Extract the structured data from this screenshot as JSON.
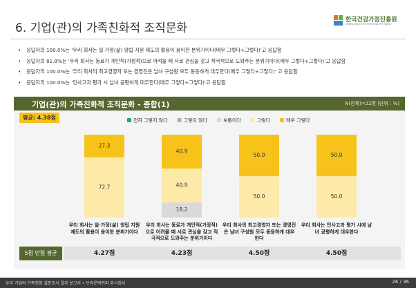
{
  "header": {
    "title": "6. 기업(관)의 가족친화적 조직문화"
  },
  "logo": {
    "name": "한국건강가정진흥원",
    "subtitle": "KOREA INSTITUTE FOR HEALTHY FAMILY"
  },
  "bullets": [
    "응답자의 100.0%는 '우리 회사는 일·가정(삶) 양립 지원 제도의 활용이 용이한 분위기이다(매우 그렇다+그렇다)'고 응답함",
    "응답자의 81.8%는 '우리 회사는 동료가 개인적(가정적)으로 어려울 때 서로 관심을 갖고 적극적으로 도와주는 분위기이다(매우 그렇다+그렇다)'고 응답함",
    "응답자의 100.0%는 '우리 회사의 최고경영자 또는 경영진은 남녀 구성원 모두 동등하게 대우한다(매우 그렇다+그렇다)' 고 응답함",
    "응답자의 100.0%는 '인사고과 평가 시 남녀 공평하게 대우한다(매우 그렇다+그렇다)'고 응답함"
  ],
  "chart_data": {
    "type": "stacked_bar",
    "title": "기업(관)의 가족친화적 조직문화 - 종합(1)",
    "subtitle": "N(전체)=22명 (단위 : %)",
    "annotation": "평균: 4.38점",
    "categories": [
      "우리 회사는 일·가정(삶) 양립 지원 제도의 활용이 용이한 분위기이다",
      "우리 회사는 동료가 개인적(가정적)으로 어려울 때 서로 관심을 갖고 적극적으로 도와주는 분위기이다",
      "우리 회사의 최고경영자 또는 경영진은 남녀 구성원 모두 동등하게 대우한다",
      "우리 회사는 인사고과 평가 시에 남녀 공평하게 대우한다"
    ],
    "ylim": [
      0,
      100
    ],
    "series": [
      {
        "name": "전혀 그렇지 않다",
        "color": "#2a9d8f",
        "values": [
          0,
          0,
          0,
          0
        ]
      },
      {
        "name": "그렇지 않다",
        "color": "#9fb7b4",
        "values": [
          0,
          0,
          0,
          0
        ]
      },
      {
        "name": "보통이다",
        "color": "#d9d9d9",
        "values": [
          0,
          18.2,
          0,
          0
        ]
      },
      {
        "name": "그렇다",
        "color": "#fdeaa8",
        "values": [
          72.7,
          40.9,
          50,
          50
        ],
        "value_labels": [
          "72.7",
          "40.9",
          "50.0",
          "50.0"
        ]
      },
      {
        "name": "매우 그렇다",
        "color": "#f7c21a",
        "values": [
          27.3,
          40.9,
          50,
          50
        ],
        "value_labels": [
          "27.3",
          "40.9",
          "50.0",
          "50.0"
        ]
      }
    ]
  },
  "score_row": {
    "label": "5점 만점 평균",
    "values": [
      "4.27점",
      "4.23점",
      "4.50점",
      "4.50점"
    ]
  },
  "footer": {
    "left": "우리 기업의 가족친화 설문조사 결과 보고서 • 브라운백커피 주식회사",
    "right": "26 / 36"
  }
}
